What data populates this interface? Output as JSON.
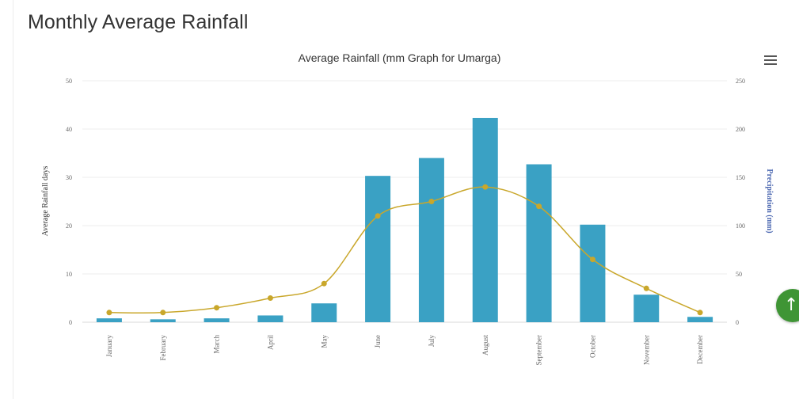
{
  "page": {
    "title": "Monthly Average Rainfall"
  },
  "chart_data": {
    "type": "bar",
    "title": "Average Rainfall (mm Graph for Umarga)",
    "categories": [
      "January",
      "February",
      "March",
      "April",
      "May",
      "June",
      "July",
      "August",
      "September",
      "October",
      "November",
      "December"
    ],
    "y_left": {
      "label": "Average Rainfall days",
      "range": [
        0,
        50
      ],
      "ticks": [
        0,
        10,
        20,
        30,
        40,
        50
      ]
    },
    "y_right": {
      "label": "Precipitation (mm)",
      "range": [
        0,
        250
      ],
      "ticks": [
        0,
        50,
        100,
        150,
        200,
        250
      ]
    },
    "series": [
      {
        "type": "bar",
        "axis": "left",
        "color": "#3aa1c4",
        "values": [
          0.8,
          0.6,
          0.8,
          1.4,
          3.9,
          30.3,
          34.0,
          42.3,
          32.7,
          20.2,
          5.7,
          1.1
        ]
      },
      {
        "type": "spline",
        "axis": "right",
        "color": "#c9a72b",
        "values": [
          10,
          10,
          15,
          25,
          40,
          110,
          125,
          140,
          120,
          65,
          35,
          10
        ]
      }
    ],
    "grid": true,
    "legend": "none"
  },
  "ui": {
    "scroll_top_icon": "arrow-up-icon",
    "menu_icon": "hamburger-menu-icon",
    "scroll_top_glyph": "↑"
  }
}
